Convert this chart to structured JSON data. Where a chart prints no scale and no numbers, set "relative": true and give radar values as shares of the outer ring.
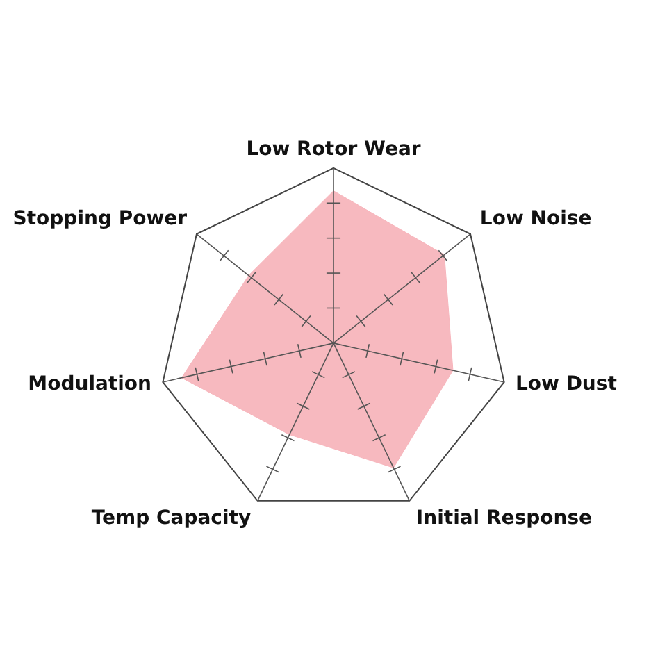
{
  "chart_data": {
    "type": "radar",
    "relative": true,
    "categories": [
      "Low Rotor Wear",
      "Low Noise",
      "Low Dust",
      "Initial Response",
      "Temp Capacity",
      "Modulation",
      "Stopping Power"
    ],
    "series": [
      {
        "color": "#f7b5bc",
        "values": [
          0.87,
          0.81,
          0.7,
          0.79,
          0.58,
          0.89,
          0.62
        ]
      }
    ]
  }
}
